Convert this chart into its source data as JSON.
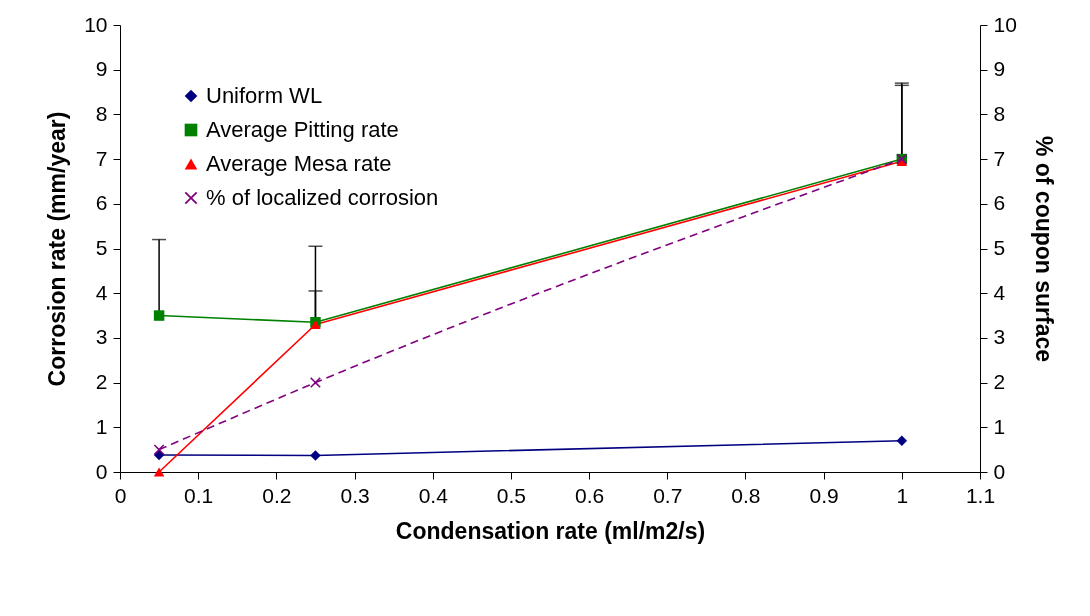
{
  "chart_data": {
    "type": "line",
    "xlabel": "Condensation rate (ml/m2/s)",
    "ylabel": "Corrosion rate (mm/year)",
    "y2label": "% of coupon surface",
    "x": [
      0.05,
      0.25,
      1
    ],
    "series": [
      {
        "name": "Uniform WL",
        "color": "#000080",
        "marker": "diamond",
        "line_style": "solid",
        "values": [
          0.38,
          0.37,
          0.7
        ]
      },
      {
        "name": "Average Pitting rate",
        "color": "#008000",
        "marker": "square",
        "line_style": "solid",
        "values": [
          3.5,
          3.35,
          7.0
        ],
        "errors": [
          [
            3.5,
            5.2
          ],
          [
            3.35,
            5.05
          ],
          [
            7.0,
            8.7
          ]
        ]
      },
      {
        "name": "Average Mesa rate",
        "color": "#ff0000",
        "marker": "triangle",
        "line_style": "solid",
        "values": [
          0,
          3.3,
          6.95
        ],
        "errors": [
          null,
          [
            3.3,
            4.05
          ],
          [
            6.95,
            8.65
          ]
        ]
      },
      {
        "name": "% of localized corrosion",
        "color": "#800080",
        "marker": "cross",
        "line_style": "dashed",
        "axis": "y2",
        "values": [
          0.5,
          2.0,
          7.0
        ]
      }
    ],
    "xlim": [
      0,
      1.1
    ],
    "xticks": [
      0,
      0.1,
      0.2,
      0.3,
      0.4,
      0.5,
      0.6,
      0.7,
      0.8,
      0.9,
      1,
      1.1
    ],
    "ylim": [
      0,
      10
    ],
    "yticks": [
      0,
      1,
      2,
      3,
      4,
      5,
      6,
      7,
      8,
      9,
      10
    ],
    "y2lim": [
      0,
      10
    ],
    "y2ticks": [
      0,
      1,
      2,
      3,
      4,
      5,
      6,
      7,
      8,
      9,
      10
    ],
    "grid": false,
    "legend": "top left"
  }
}
